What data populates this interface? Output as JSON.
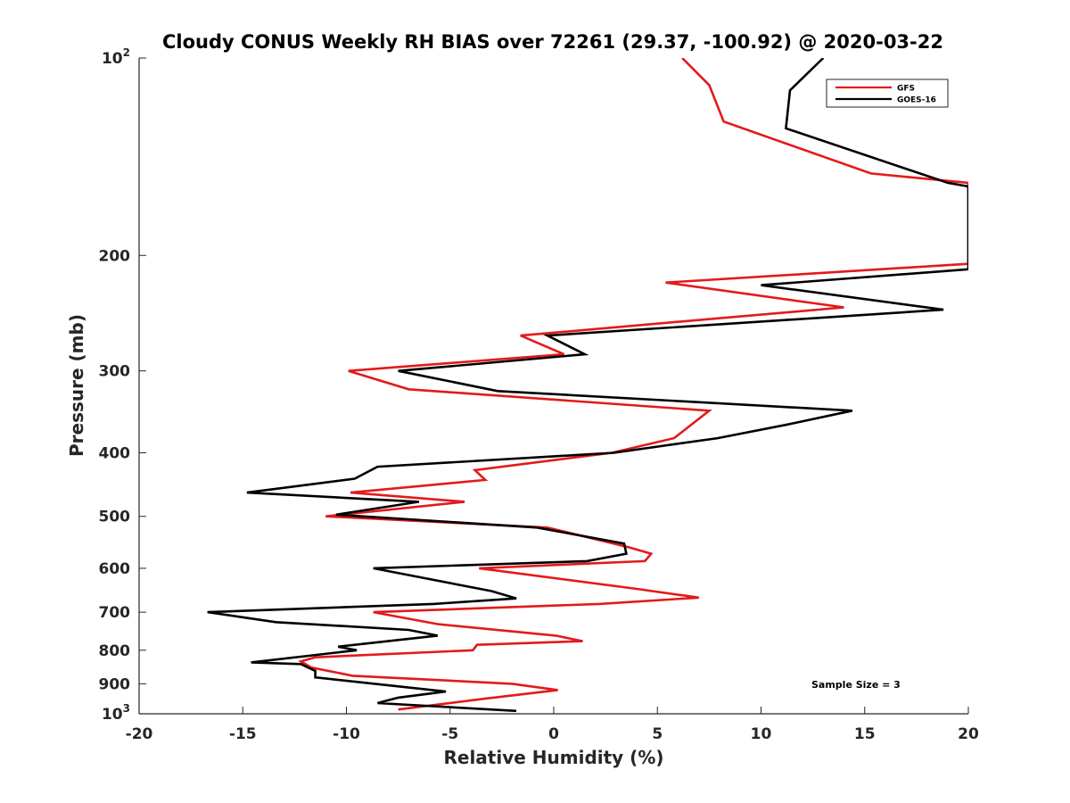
{
  "chart_data": {
    "type": "line",
    "title": "Cloudy CONUS Weekly RH BIAS over 72261 (29.37, -100.92) @ 2020-03-22",
    "xlabel": "Relative Humidity (%)",
    "ylabel": "Pressure (mb)",
    "xlim": [
      -20,
      20
    ],
    "ylim": [
      100,
      1000
    ],
    "y_scale": "log",
    "y_reversed": true,
    "grid": false,
    "legend_position": "top-right",
    "annotation": "Sample Size = 3",
    "x_ticks": [
      {
        "value": -20,
        "label": "-20"
      },
      {
        "value": -15,
        "label": "-15"
      },
      {
        "value": -10,
        "label": "-10"
      },
      {
        "value": -5,
        "label": "-5"
      },
      {
        "value": 0,
        "label": "0"
      },
      {
        "value": 5,
        "label": "5"
      },
      {
        "value": 10,
        "label": "10"
      },
      {
        "value": 15,
        "label": "15"
      },
      {
        "value": 20,
        "label": "20"
      }
    ],
    "y_ticks": [
      {
        "value": 100,
        "base": "10",
        "exp": "2"
      },
      {
        "value": 200,
        "base": "200",
        "exp": ""
      },
      {
        "value": 300,
        "base": "300",
        "exp": ""
      },
      {
        "value": 400,
        "base": "400",
        "exp": ""
      },
      {
        "value": 500,
        "base": "500",
        "exp": ""
      },
      {
        "value": 600,
        "base": "600",
        "exp": ""
      },
      {
        "value": 700,
        "base": "700",
        "exp": ""
      },
      {
        "value": 800,
        "base": "800",
        "exp": ""
      },
      {
        "value": 900,
        "base": "900",
        "exp": ""
      },
      {
        "value": 1000,
        "base": "10",
        "exp": "3"
      }
    ],
    "series": [
      {
        "name": "GFS",
        "color": "#e31a1c",
        "points": [
          [
            6.2,
            100
          ],
          [
            7.5,
            110
          ],
          [
            8.2,
            125
          ],
          [
            15.3,
            150
          ],
          [
            20,
            155
          ],
          [
            20,
            206
          ],
          [
            5.4,
            220
          ],
          [
            14,
            240
          ],
          [
            -1.6,
            265
          ],
          [
            0.5,
            283
          ],
          [
            -9.9,
            300
          ],
          [
            -7,
            320
          ],
          [
            7.5,
            345
          ],
          [
            5.8,
            380
          ],
          [
            2.8,
            400
          ],
          [
            -3.8,
            425
          ],
          [
            -3.3,
            440
          ],
          [
            -9.8,
            460
          ],
          [
            -4.3,
            475
          ],
          [
            -11,
            500
          ],
          [
            -0.3,
            520
          ],
          [
            3.6,
            557
          ],
          [
            4.7,
            570
          ],
          [
            4.4,
            585
          ],
          [
            -3.6,
            600
          ],
          [
            4,
            645
          ],
          [
            7,
            665
          ],
          [
            2.2,
            680
          ],
          [
            -8.7,
            700
          ],
          [
            -5.6,
            730
          ],
          [
            0.1,
            760
          ],
          [
            1.4,
            775
          ],
          [
            -3.7,
            785
          ],
          [
            -3.9,
            800
          ],
          [
            -11.5,
            820
          ],
          [
            -12.2,
            832
          ],
          [
            -11.7,
            850
          ],
          [
            -9.7,
            875
          ],
          [
            -2,
            900
          ],
          [
            0.2,
            920
          ],
          [
            -3.5,
            950
          ],
          [
            -7.5,
            985
          ]
        ]
      },
      {
        "name": "GOES-16",
        "color": "#000000",
        "points": [
          [
            13,
            100
          ],
          [
            11.4,
            112
          ],
          [
            11.2,
            128
          ],
          [
            19,
            155
          ],
          [
            20,
            157
          ],
          [
            20,
            210
          ],
          [
            10,
            222
          ],
          [
            18.8,
            242
          ],
          [
            -0.3,
            265
          ],
          [
            1.5,
            283
          ],
          [
            -7.5,
            300
          ],
          [
            -2.7,
            322
          ],
          [
            14.4,
            345
          ],
          [
            11.3,
            362
          ],
          [
            7.9,
            380
          ],
          [
            2.9,
            400
          ],
          [
            -8.5,
            420
          ],
          [
            -9.6,
            438
          ],
          [
            -14.8,
            460
          ],
          [
            -6.5,
            475
          ],
          [
            -10.5,
            497
          ],
          [
            -0.8,
            520
          ],
          [
            3.4,
            550
          ],
          [
            3.5,
            570
          ],
          [
            1.6,
            585
          ],
          [
            -8.7,
            600
          ],
          [
            -3,
            650
          ],
          [
            -1.8,
            667
          ],
          [
            -5.8,
            680
          ],
          [
            -16.7,
            700
          ],
          [
            -13.4,
            725
          ],
          [
            -7,
            745
          ],
          [
            -5.6,
            760
          ],
          [
            -10.4,
            790
          ],
          [
            -9.5,
            800
          ],
          [
            -14.6,
            835
          ],
          [
            -12.2,
            840
          ],
          [
            -11.5,
            860
          ],
          [
            -11.5,
            880
          ],
          [
            -5.2,
            925
          ],
          [
            -7.5,
            945
          ],
          [
            -8.5,
            963
          ],
          [
            -1.8,
            990
          ]
        ]
      }
    ]
  }
}
